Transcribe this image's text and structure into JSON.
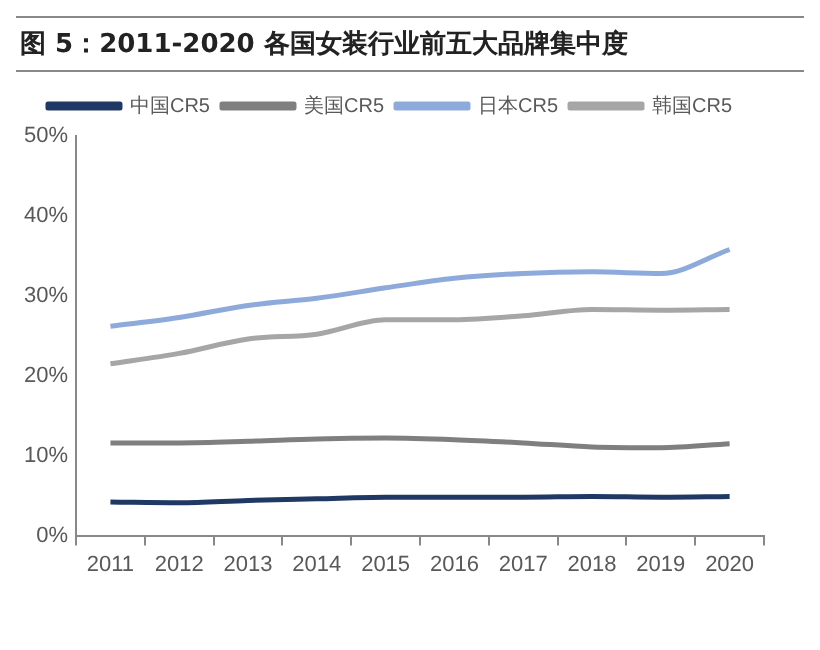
{
  "chart_data": {
    "type": "line",
    "title": "图 5：2011-2020 各国女装行业前五大品牌集中度",
    "categories": [
      "2011",
      "2012",
      "2013",
      "2014",
      "2015",
      "2016",
      "2017",
      "2018",
      "2019",
      "2020"
    ],
    "series": [
      {
        "name": "中国CR5",
        "color": "#1f3864",
        "values": [
          4.2,
          4.1,
          4.4,
          4.6,
          4.8,
          4.8,
          4.8,
          4.9,
          4.8,
          4.9
        ]
      },
      {
        "name": "美国CR5",
        "color": "#7f7f7f",
        "values": [
          11.6,
          11.6,
          11.8,
          12.1,
          12.2,
          12.0,
          11.6,
          11.1,
          11.0,
          11.5
        ]
      },
      {
        "name": "日本CR5",
        "color": "#8eaadb",
        "values": [
          26.2,
          27.3,
          28.8,
          29.7,
          31.0,
          32.2,
          32.8,
          33.0,
          32.8,
          35.8
        ]
      },
      {
        "name": "韩国CR5",
        "color": "#a6a6a6",
        "values": [
          21.5,
          22.8,
          24.6,
          25.2,
          27.0,
          27.0,
          27.5,
          28.3,
          28.2,
          28.3
        ]
      }
    ],
    "ylim": [
      0,
      50
    ],
    "yticks": [
      {
        "value": 0,
        "label": "0%"
      },
      {
        "value": 10,
        "label": "10%"
      },
      {
        "value": 20,
        "label": "20%"
      },
      {
        "value": 30,
        "label": "30%"
      },
      {
        "value": 40,
        "label": "40%"
      },
      {
        "value": 50,
        "label": "50%"
      }
    ],
    "grid": false,
    "legend": "top",
    "marker": "none",
    "line_style": "solid"
  }
}
